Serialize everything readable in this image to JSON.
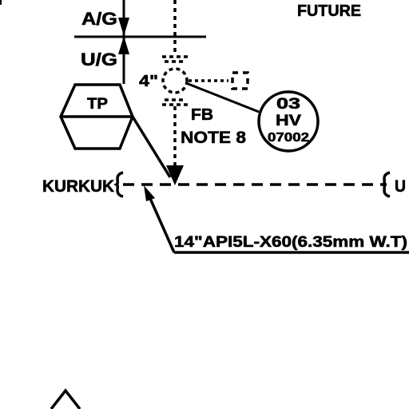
{
  "labels": {
    "future": "FUTURE",
    "above_ground": "A/G",
    "under_ground": "U/G",
    "pipe_size": "4\"",
    "tp_symbol": "TP",
    "full_bore": "FB",
    "note": "NOTE 8",
    "valve_tag_line1": "03",
    "valve_tag_line2": "HV",
    "valve_tag_line3": "07002",
    "origin": "KURKUK",
    "destination_partial": "U",
    "pipe_spec": "14\"API5L-X60(6.35mm W.T)"
  },
  "colors": {
    "ink": "#000000",
    "background": "#ffffff"
  }
}
